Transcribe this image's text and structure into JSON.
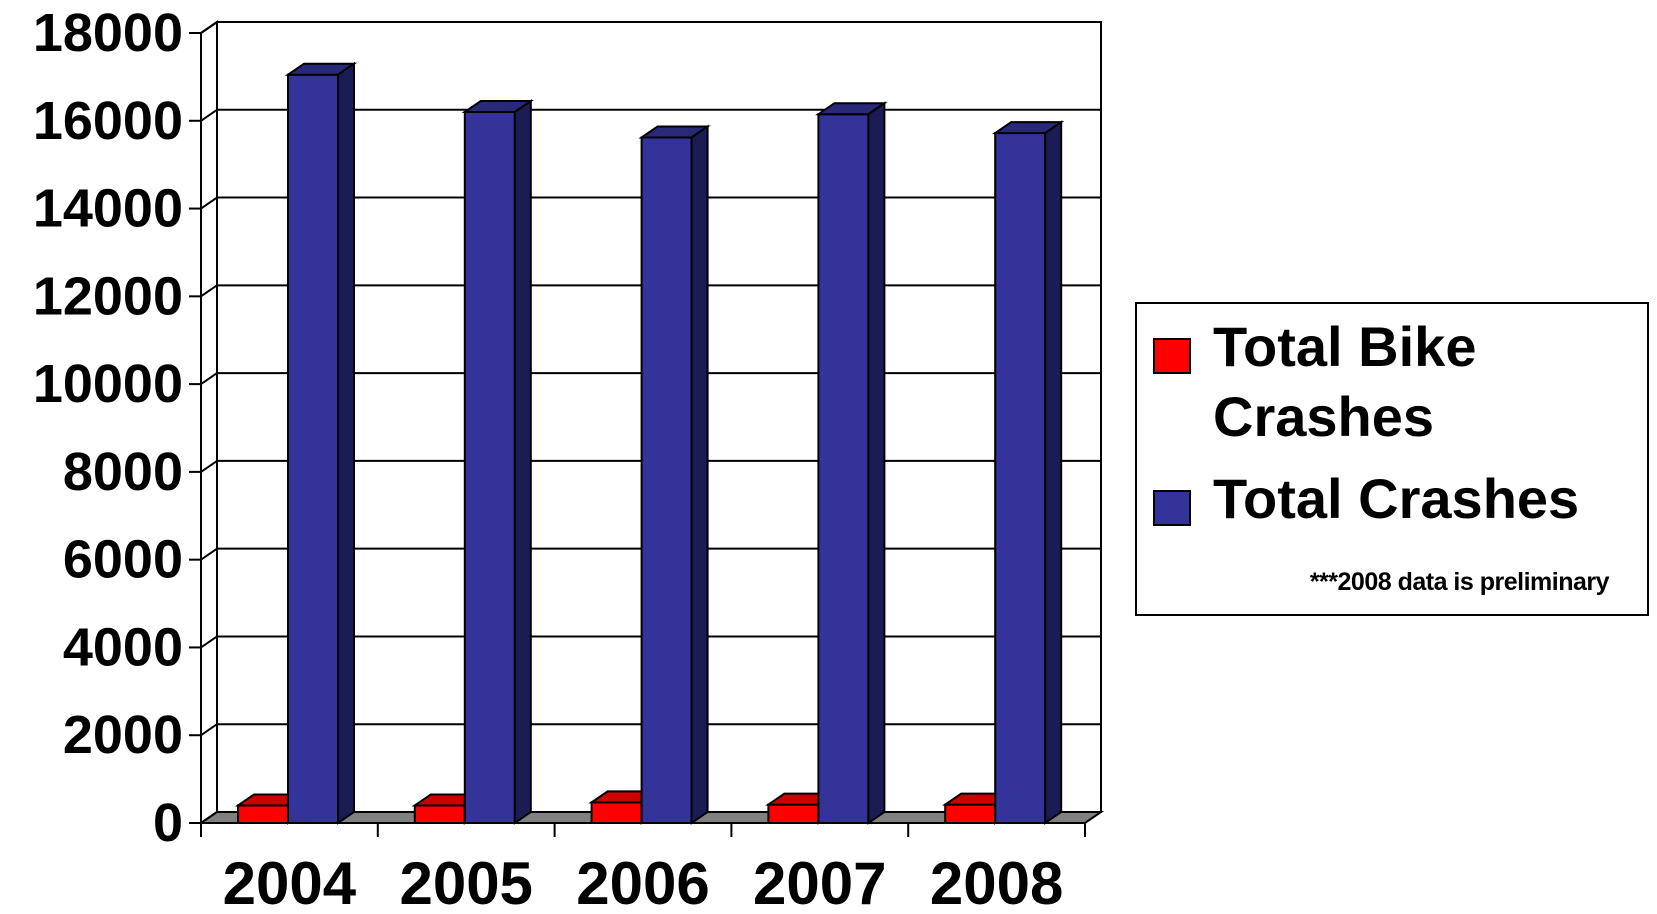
{
  "chart_data": {
    "type": "bar",
    "categories": [
      "2004",
      "2005",
      "2006",
      "2007",
      "2008"
    ],
    "series": [
      {
        "name": "Total Bike Crashes",
        "values": [
          400,
          400,
          470,
          420,
          420
        ],
        "color": "#ff0000"
      },
      {
        "name": "Total Crashes",
        "values": [
          17050,
          16200,
          15620,
          16150,
          15720
        ],
        "color": "#333399"
      }
    ],
    "y_ticks": [
      "0",
      "2000",
      "4000",
      "6000",
      "8000",
      "10000",
      "12000",
      "14000",
      "16000",
      "18000"
    ],
    "ylim": [
      0,
      18000
    ],
    "grid": true,
    "three_d": true,
    "legend_position": "right",
    "note": "***2008 data is preliminary"
  }
}
